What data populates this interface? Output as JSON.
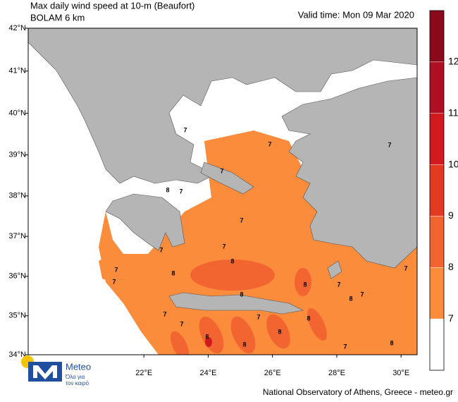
{
  "header": {
    "title": "Max daily wind speed at 10-m (Beaufort)",
    "model": "BOLAM 6 km",
    "valid_time": "Valid time: Mon 09 Mar 2020"
  },
  "map": {
    "xlim": [
      18.4,
      30.5
    ],
    "ylim": [
      34,
      42
    ],
    "xticks": [
      {
        "value": 22,
        "label": "22°E"
      },
      {
        "value": 24,
        "label": "24°E"
      },
      {
        "value": 26,
        "label": "26°E"
      },
      {
        "value": 28,
        "label": "28°E"
      },
      {
        "value": 30,
        "label": "30°E"
      }
    ],
    "yticks": [
      {
        "value": 34,
        "label": "34°N"
      },
      {
        "value": 35,
        "label": "35°N"
      },
      {
        "value": 36,
        "label": "36°N"
      },
      {
        "value": 37,
        "label": "37°N"
      },
      {
        "value": 38,
        "label": "38°N"
      },
      {
        "value": 39,
        "label": "39°N"
      },
      {
        "value": 40,
        "label": "40°N"
      },
      {
        "value": 41,
        "label": "41°N"
      },
      {
        "value": 42,
        "label": "42°N"
      }
    ],
    "contour_labels": [
      7,
      7,
      7,
      8,
      7,
      7,
      7,
      7,
      8,
      8,
      7,
      7,
      8,
      8,
      7,
      7,
      8,
      7,
      7,
      7,
      7,
      7,
      8,
      8,
      8,
      8,
      7,
      8
    ]
  },
  "colorbar": {
    "levels": [
      7,
      8,
      9,
      10,
      11,
      12
    ],
    "colors": [
      "#ffffff",
      "#fb8c3c",
      "#f26430",
      "#e43a22",
      "#d01a1e",
      "#b00e22",
      "#8a0a1c"
    ]
  },
  "footer": {
    "credit": "National Observatory of Athens, Greece - meteo.gr",
    "logo_name": "Meteo",
    "logo_tagline": [
      "Όλα για",
      "τον καιρό"
    ]
  }
}
